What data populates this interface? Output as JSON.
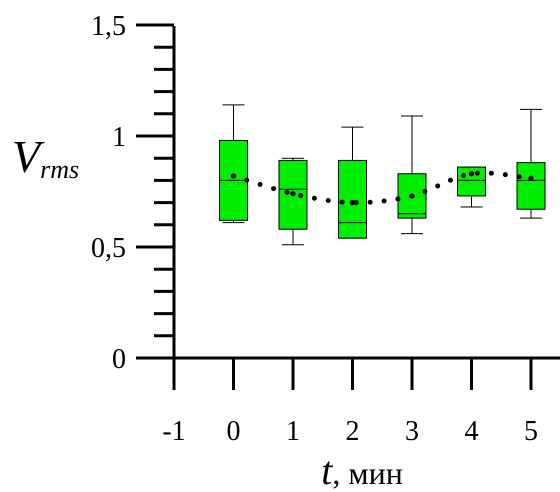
{
  "chart_data": {
    "type": "box",
    "xlabel": {
      "var": "t",
      "unit": ", мин"
    },
    "ylabel": {
      "var": "V",
      "sub": "rms"
    },
    "xlim": [
      -1,
      5.6
    ],
    "ylim": [
      0,
      1.5
    ],
    "x_ticks": [
      {
        "value": -1,
        "label": "-1"
      },
      {
        "value": 0,
        "label": "0"
      },
      {
        "value": 1,
        "label": "1"
      },
      {
        "value": 2,
        "label": "2"
      },
      {
        "value": 3,
        "label": "3"
      },
      {
        "value": 4,
        "label": "4"
      },
      {
        "value": 5,
        "label": "5"
      }
    ],
    "y_ticks": [
      {
        "value": 0,
        "label": "0"
      },
      {
        "value": 0.5,
        "label": "0,5"
      },
      {
        "value": 1,
        "label": "1"
      },
      {
        "value": 1.5,
        "label": "1,5"
      }
    ],
    "y_minor_step": 0.1,
    "box_color": "#00ee00",
    "boxes": [
      {
        "x": 0,
        "min": 0.61,
        "q1": 0.62,
        "median": 0.8,
        "q3": 0.98,
        "max": 1.14,
        "mean": 0.82
      },
      {
        "x": 1,
        "min": 0.51,
        "q1": 0.58,
        "median": 0.76,
        "q3": 0.89,
        "max": 0.9,
        "mean": 0.74
      },
      {
        "x": 2,
        "min": 0.54,
        "q1": 0.54,
        "median": 0.61,
        "q3": 0.89,
        "max": 1.04,
        "mean": 0.7
      },
      {
        "x": 3,
        "min": 0.56,
        "q1": 0.63,
        "median": 0.65,
        "q3": 0.83,
        "max": 1.09,
        "mean": 0.73
      },
      {
        "x": 4,
        "min": 0.68,
        "q1": 0.73,
        "median": 0.8,
        "q3": 0.86,
        "max": 0.86,
        "mean": 0.83
      },
      {
        "x": 5,
        "min": 0.63,
        "q1": 0.67,
        "median": 0.8,
        "q3": 0.88,
        "max": 1.12,
        "mean": 0.81
      }
    ],
    "mean_line_style": "dotted"
  }
}
